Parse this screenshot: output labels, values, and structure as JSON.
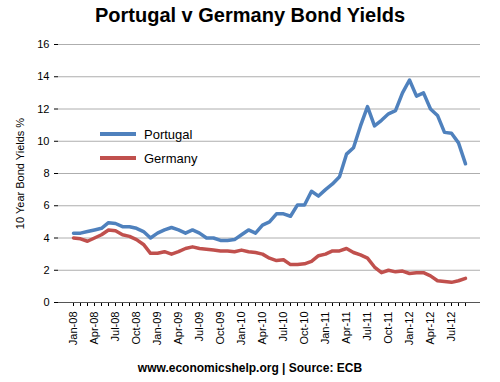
{
  "chart_data": {
    "type": "line",
    "title": "Portugal v Germany Bond Yields",
    "y_label": "10 Year Bond Yields %",
    "caption": "www.economicshelp.org | Source: ECB",
    "categories": [
      "Jan-08",
      null,
      null,
      "Apr-08",
      null,
      null,
      "Jul-08",
      null,
      null,
      "Oct-08",
      null,
      null,
      "Jan-09",
      null,
      null,
      "Apr-09",
      null,
      null,
      "Jul-09",
      null,
      null,
      "Oct-09",
      null,
      null,
      "Jan-10",
      null,
      null,
      "Apr-10",
      null,
      null,
      "Jul-10",
      null,
      null,
      "Oct-10",
      null,
      null,
      "Jan-11",
      null,
      null,
      "Apr-11",
      null,
      null,
      "Jul-11",
      null,
      null,
      "Oct-11",
      null,
      null,
      "Jan-12",
      null,
      null,
      "Apr-12",
      null,
      null,
      "Jul-12",
      null,
      null
    ],
    "series": [
      {
        "name": "Portugal",
        "color": "#4f81bd",
        "values": [
          4.3,
          4.3,
          4.4,
          4.5,
          4.6,
          4.95,
          4.9,
          4.7,
          4.7,
          4.6,
          4.4,
          4.0,
          4.3,
          4.5,
          4.65,
          4.5,
          4.3,
          4.5,
          4.3,
          4.0,
          4.0,
          3.85,
          3.85,
          3.9,
          4.2,
          4.5,
          4.3,
          4.8,
          5.0,
          5.5,
          5.5,
          5.35,
          6.05,
          6.05,
          6.9,
          6.6,
          7.0,
          7.35,
          7.8,
          9.2,
          9.6,
          10.95,
          12.15,
          10.95,
          11.3,
          11.7,
          11.9,
          13.0,
          13.8,
          12.8,
          13.0,
          12.0,
          11.6,
          10.55,
          10.5,
          9.9,
          8.6
        ]
      },
      {
        "name": "Germany",
        "color": "#c0504d",
        "values": [
          4.0,
          3.95,
          3.8,
          4.0,
          4.2,
          4.5,
          4.45,
          4.2,
          4.1,
          3.9,
          3.6,
          3.05,
          3.05,
          3.15,
          3.0,
          3.15,
          3.35,
          3.45,
          3.35,
          3.3,
          3.25,
          3.2,
          3.2,
          3.15,
          3.25,
          3.15,
          3.1,
          3.0,
          2.75,
          2.6,
          2.65,
          2.35,
          2.35,
          2.4,
          2.55,
          2.9,
          3.0,
          3.2,
          3.2,
          3.35,
          3.1,
          2.95,
          2.75,
          2.2,
          1.85,
          2.0,
          1.9,
          1.95,
          1.8,
          1.85,
          1.85,
          1.65,
          1.35,
          1.3,
          1.25,
          1.35,
          1.5
        ]
      }
    ],
    "ylim": [
      0,
      16
    ],
    "yticks": [
      0,
      2,
      4,
      6,
      8,
      10,
      12,
      14,
      16
    ],
    "grid": true,
    "legend": "upper left"
  }
}
